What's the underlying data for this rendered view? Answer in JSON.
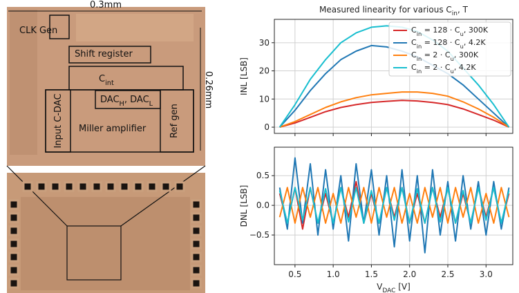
{
  "micrograph": {
    "width_label": "0.3mm",
    "height_label": "0.26mm",
    "blocks": [
      "CLK Gen",
      "Shift register",
      "C_{int}",
      "DAC_{H}, DAC_{L}",
      "Miller amplifier",
      "Input C-DAC",
      "Ref gen"
    ]
  },
  "chart_data": [
    {
      "type": "line",
      "title": "Measured linearity for various C_{in}, T",
      "ylabel": "INL [LSB]",
      "x": [
        0.3,
        0.5,
        0.7,
        0.9,
        1.1,
        1.3,
        1.5,
        1.7,
        1.9,
        2.1,
        2.3,
        2.5,
        2.7,
        2.9,
        3.1,
        3.3
      ],
      "series": [
        {
          "name": "C_{in} = 128 · C_{u}, 300K",
          "color": "#d62728",
          "values": [
            0,
            1.5,
            3.5,
            5.5,
            7,
            8,
            8.8,
            9.2,
            9.5,
            9.3,
            8.8,
            8,
            6.5,
            4.5,
            2.5,
            0
          ]
        },
        {
          "name": "C_{in} = 128 · C_{u}, 4.2K",
          "color": "#1f77b4",
          "values": [
            0,
            6,
            13,
            19,
            24,
            27,
            29,
            28.5,
            27,
            25,
            22,
            19,
            15,
            10,
            5,
            0
          ]
        },
        {
          "name": "C_{in} = 2 · C_{u}, 300K",
          "color": "#ff7f0e",
          "values": [
            0,
            2,
            4.5,
            7,
            9,
            10.5,
            11.5,
            12,
            12.5,
            12.5,
            12,
            11,
            9,
            6.5,
            3.5,
            0
          ]
        },
        {
          "name": "C_{in} = 2 · C_{u}, 4.2K",
          "color": "#17becf",
          "values": [
            0,
            8,
            17,
            24,
            30,
            33.5,
            35.5,
            36,
            35.5,
            34,
            31,
            27,
            21,
            15,
            8,
            0
          ]
        }
      ],
      "xlim": [
        0.23,
        3.35
      ],
      "ylim": [
        -2.2,
        38.3
      ],
      "xticks": [
        0.5,
        {
          "value": 1,
          "label": "1.0"
        },
        1.5,
        {
          "value": 2,
          "label": "2.0"
        },
        2.5,
        {
          "value": 3,
          "label": "3.0"
        }
      ],
      "yticks": [
        0,
        10,
        20,
        30
      ],
      "grid": true,
      "legend": "upper right"
    },
    {
      "type": "line",
      "ylabel": "DNL [LSB]",
      "xlabel": "V_{DAC} [V]",
      "x": [
        0.3,
        0.4,
        0.5,
        0.6,
        0.7,
        0.8,
        0.9,
        1.0,
        1.1,
        1.2,
        1.3,
        1.4,
        1.5,
        1.6,
        1.7,
        1.8,
        1.9,
        2.0,
        2.1,
        2.2,
        2.3,
        2.4,
        2.5,
        2.6,
        2.7,
        2.8,
        2.9,
        3.0,
        3.1,
        3.2,
        3.3
      ],
      "series": [
        {
          "color": "#d62728",
          "values": [
            0.2,
            -0.3,
            0.3,
            -0.4,
            0.3,
            -0.3,
            0.2,
            -0.3,
            0.3,
            -0.2,
            0.4,
            -0.3,
            0.2,
            -0.3,
            0.3,
            -0.2,
            0.3,
            -0.3,
            0.2,
            -0.3,
            0.3,
            -0.2,
            0.3,
            -0.3,
            0.2,
            -0.3,
            0.3,
            -0.2,
            0.3,
            -0.3,
            0.2
          ]
        },
        {
          "color": "#1f77b4",
          "values": [
            0.3,
            -0.4,
            0.8,
            -0.3,
            0.7,
            -0.5,
            0.6,
            -0.4,
            0.5,
            -0.6,
            0.7,
            -0.3,
            0.6,
            -0.5,
            0.5,
            -0.7,
            0.6,
            -0.6,
            0.5,
            -0.8,
            0.6,
            -0.5,
            0.4,
            -0.6,
            0.5,
            -0.4,
            0.4,
            -0.5,
            0.4,
            -0.4,
            0.3
          ]
        },
        {
          "color": "#ff7f0e",
          "values": [
            -0.2,
            0.3,
            -0.3,
            0.3,
            -0.2,
            0.3,
            -0.3,
            0.2,
            -0.3,
            0.3,
            -0.2,
            0.3,
            -0.3,
            0.3,
            -0.2,
            0.3,
            -0.3,
            0.2,
            -0.3,
            0.3,
            -0.2,
            0.3,
            -0.3,
            0.3,
            -0.2,
            0.3,
            -0.3,
            0.2,
            -0.3,
            0.3,
            -0.2
          ]
        },
        {
          "color": "#17becf",
          "values": [
            0.25,
            -0.3,
            0.3,
            -0.25,
            0.3,
            -0.3,
            0.28,
            -0.3,
            0.3,
            -0.28,
            0.3,
            -0.3,
            0.25,
            -0.3,
            0.3,
            -0.25,
            0.3,
            -0.3,
            0.28,
            -0.3,
            0.3,
            -0.28,
            0.3,
            -0.3,
            0.25,
            -0.3,
            0.3,
            -0.25,
            0.3,
            -0.3,
            0.25
          ]
        }
      ],
      "xlim": [
        0.23,
        3.35
      ],
      "ylim": [
        -1.0,
        0.98
      ],
      "xticks": [
        0.5,
        {
          "value": 1,
          "label": "1.0"
        },
        1.5,
        {
          "value": 2,
          "label": "2.0"
        },
        2.5,
        {
          "value": 3,
          "label": "3.0"
        }
      ],
      "yticks": [
        {
          "value": -0.5,
          "label": "−0.5"
        },
        {
          "value": 0,
          "label": "0.0"
        },
        0.5
      ],
      "grid": true
    }
  ]
}
